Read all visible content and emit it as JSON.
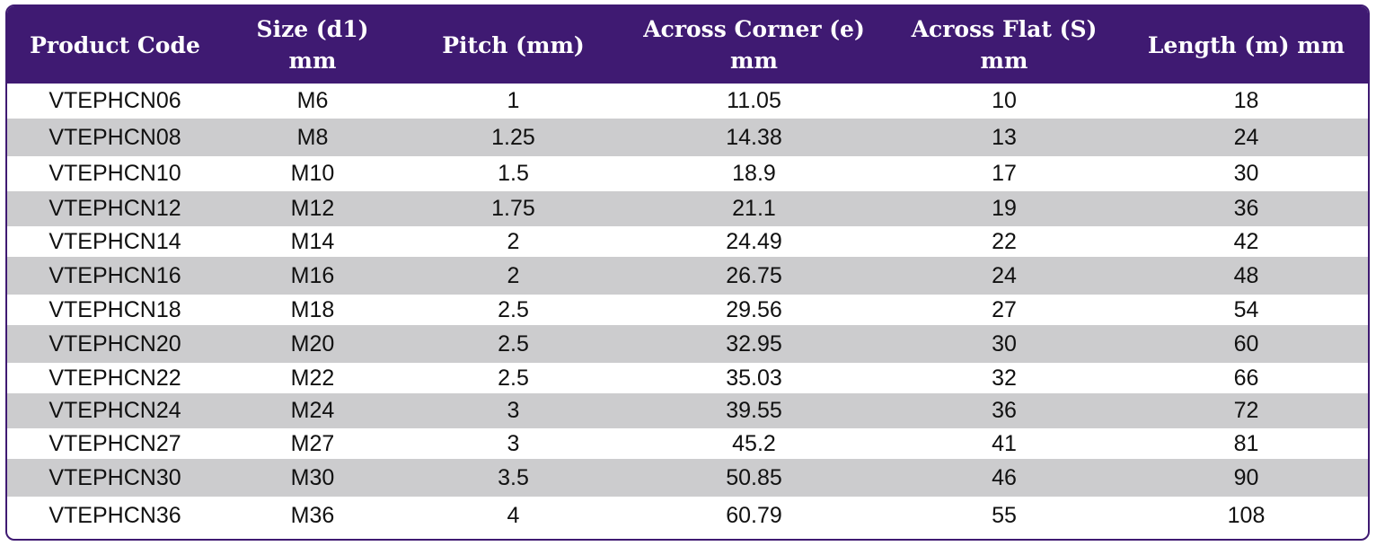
{
  "table": {
    "headers": [
      "Product Code",
      "Size (d1)\nmm",
      "Pitch (mm)",
      "Across Corner (e)\nmm",
      "Across Flat (S)\nmm",
      "Length (m) mm"
    ],
    "rows": [
      [
        "VTEPHCN06",
        "M6",
        "1",
        "11.05",
        "10",
        "18"
      ],
      [
        "VTEPHCN08",
        "M8",
        "1.25",
        "14.38",
        "13",
        "24"
      ],
      [
        "VTEPHCN10",
        "M10",
        "1.5",
        "18.9",
        "17",
        "30"
      ],
      [
        "VTEPHCN12",
        "M12",
        "1.75",
        "21.1",
        "19",
        "36"
      ],
      [
        "VTEPHCN14",
        "M14",
        "2",
        "24.49",
        "22",
        "42"
      ],
      [
        "VTEPHCN16",
        "M16",
        "2",
        "26.75",
        "24",
        "48"
      ],
      [
        "VTEPHCN18",
        "M18",
        "2.5",
        "29.56",
        "27",
        "54"
      ],
      [
        "VTEPHCN20",
        "M20",
        "2.5",
        "32.95",
        "30",
        "60"
      ],
      [
        "VTEPHCN22",
        "M22",
        "2.5",
        "35.03",
        "32",
        "66"
      ],
      [
        "VTEPHCN24",
        "M24",
        "3",
        "39.55",
        "36",
        "72"
      ],
      [
        "VTEPHCN27",
        "M27",
        "3",
        "45.2",
        "41",
        "81"
      ],
      [
        "VTEPHCN30",
        "M30",
        "3.5",
        "50.85",
        "46",
        "90"
      ],
      [
        "VTEPHCN36",
        "M36",
        "4",
        "60.79",
        "55",
        "108"
      ]
    ]
  },
  "colors": {
    "header_bg": "#3f1a72",
    "header_text": "#ffffff",
    "alt_row_bg": "#ccccce",
    "row_bg": "#ffffff"
  }
}
